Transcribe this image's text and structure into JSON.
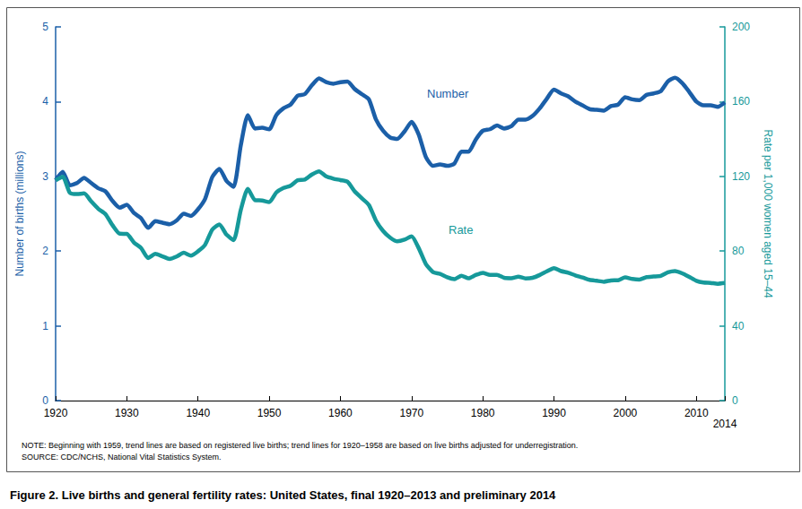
{
  "chart_data": {
    "type": "line",
    "title": "Figure 2. Live births and general fertility rates: United States, final 1920–2013 and preliminary 2014",
    "notes": [
      "NOTE: Beginning with 1959, trend lines are based on registered live births; trend lines for 1920–1958 are based on live births adjusted for underregistration.",
      "SOURCE: CDC/NCHS, National Vital Statistics System."
    ],
    "y_label": "Number of births (millions)",
    "y2_label": "Rate per 1,000 women aged 15–44",
    "x": [
      1920,
      1921,
      1922,
      1923,
      1924,
      1925,
      1926,
      1927,
      1928,
      1929,
      1930,
      1931,
      1932,
      1933,
      1934,
      1935,
      1936,
      1937,
      1938,
      1939,
      1940,
      1941,
      1942,
      1943,
      1944,
      1945,
      1946,
      1947,
      1948,
      1949,
      1950,
      1951,
      1952,
      1953,
      1954,
      1955,
      1956,
      1957,
      1958,
      1959,
      1960,
      1961,
      1962,
      1963,
      1964,
      1965,
      1966,
      1967,
      1968,
      1969,
      1970,
      1971,
      1972,
      1973,
      1974,
      1975,
      1976,
      1977,
      1978,
      1979,
      1980,
      1981,
      1982,
      1983,
      1984,
      1985,
      1986,
      1987,
      1988,
      1989,
      1990,
      1991,
      1992,
      1993,
      1994,
      1995,
      1996,
      1997,
      1998,
      1999,
      2000,
      2001,
      2002,
      2003,
      2004,
      2005,
      2006,
      2007,
      2008,
      2009,
      2010,
      2011,
      2012,
      2013,
      2014
    ],
    "series": [
      {
        "name": "Number",
        "color": "#1b5fa8",
        "axis": "y",
        "values": [
          2.95,
          3.06,
          2.88,
          2.91,
          2.98,
          2.91,
          2.84,
          2.8,
          2.67,
          2.58,
          2.62,
          2.51,
          2.44,
          2.31,
          2.4,
          2.38,
          2.36,
          2.41,
          2.5,
          2.47,
          2.56,
          2.7,
          2.99,
          3.1,
          2.94,
          2.86,
          3.41,
          3.82,
          3.64,
          3.65,
          3.63,
          3.82,
          3.91,
          3.96,
          4.08,
          4.1,
          4.22,
          4.31,
          4.26,
          4.24,
          4.26,
          4.27,
          4.17,
          4.1,
          4.03,
          3.76,
          3.61,
          3.52,
          3.5,
          3.6,
          3.73,
          3.56,
          3.26,
          3.14,
          3.16,
          3.14,
          3.17,
          3.33,
          3.33,
          3.49,
          3.61,
          3.63,
          3.68,
          3.64,
          3.67,
          3.76,
          3.76,
          3.81,
          3.91,
          4.04,
          4.16,
          4.11,
          4.07,
          4.0,
          3.95,
          3.9,
          3.89,
          3.88,
          3.94,
          3.96,
          4.06,
          4.03,
          4.02,
          4.09,
          4.11,
          4.14,
          4.27,
          4.32,
          4.25,
          4.13,
          4.0,
          3.95,
          3.95,
          3.93,
          3.99
        ]
      },
      {
        "name": "Rate",
        "color": "#16999a",
        "axis": "y2",
        "values": [
          117.9,
          119.8,
          111.2,
          110.5,
          110.9,
          106.6,
          102.6,
          99.8,
          93.8,
          89.3,
          89.2,
          84.6,
          81.7,
          76.3,
          78.5,
          77.2,
          75.8,
          77.1,
          79.1,
          77.6,
          79.9,
          83.4,
          91.5,
          94.3,
          88.8,
          85.9,
          101.9,
          113.3,
          107.3,
          107.1,
          106.2,
          111.4,
          113.8,
          115.0,
          117.9,
          118.3,
          121.0,
          122.7,
          120.0,
          118.8,
          118.0,
          117.1,
          112.0,
          108.3,
          104.7,
          96.3,
          90.8,
          87.2,
          85.2,
          86.1,
          87.9,
          81.6,
          73.1,
          68.8,
          67.8,
          66.0,
          65.0,
          66.8,
          65.5,
          67.2,
          68.4,
          67.3,
          67.3,
          65.7,
          65.5,
          66.3,
          65.4,
          65.7,
          67.2,
          69.2,
          70.9,
          69.3,
          68.4,
          67.0,
          65.9,
          64.6,
          64.1,
          63.6,
          64.3,
          64.4,
          65.9,
          65.1,
          64.8,
          66.1,
          66.4,
          66.7,
          68.6,
          69.3,
          68.1,
          66.2,
          64.1,
          63.2,
          63.0,
          62.5,
          62.9
        ]
      }
    ],
    "xlim": [
      1920,
      2014
    ],
    "xticks": [
      1920,
      1930,
      1940,
      1950,
      1960,
      1970,
      1980,
      1990,
      2000,
      2010,
      2014
    ],
    "ylim": [
      0,
      5
    ],
    "yticks": [
      0,
      1,
      2,
      3,
      4,
      5
    ],
    "y2lim": [
      0,
      200
    ],
    "y2ticks": [
      0,
      40,
      80,
      120,
      160,
      200
    ],
    "grid": false
  }
}
